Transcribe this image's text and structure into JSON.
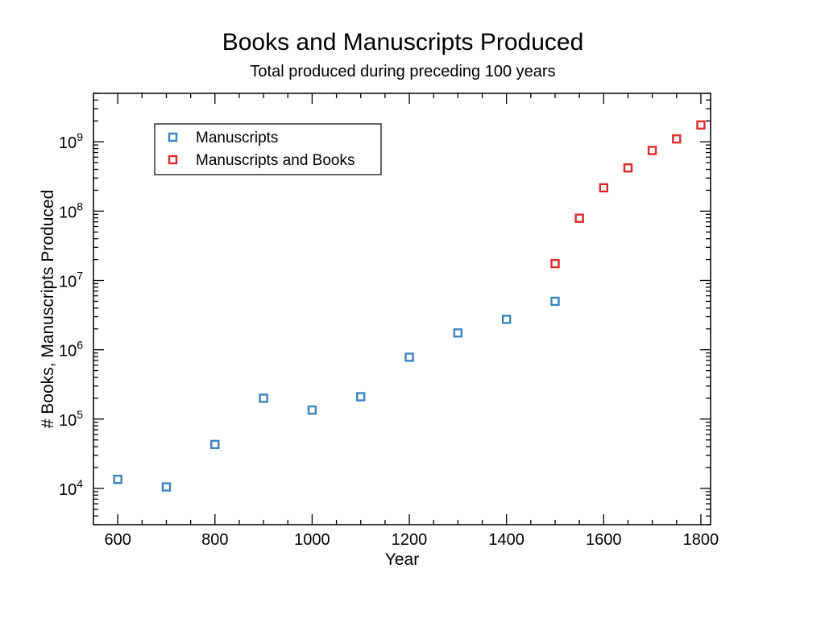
{
  "chart_data": {
    "type": "scatter",
    "title": "Books and Manuscripts Produced",
    "subtitle": "Total produced during preceding 100 years",
    "xlabel": "Year",
    "ylabel": "# Books, Manuscripts Produced",
    "xlim": [
      550,
      1820
    ],
    "ylim": [
      3000,
      5000000000
    ],
    "yscale": "log",
    "x_ticks": [
      600,
      800,
      1000,
      1200,
      1400,
      1600,
      1800
    ],
    "x_tick_labels": [
      "600",
      "800",
      "1000",
      "1200",
      "1400",
      "1600",
      "1800"
    ],
    "y_ticks": [
      {
        "value": 10000,
        "base": "10",
        "exp": "4"
      },
      {
        "value": 100000,
        "base": "10",
        "exp": "5"
      },
      {
        "value": 1000000,
        "base": "10",
        "exp": "6"
      },
      {
        "value": 10000000,
        "base": "10",
        "exp": "7"
      },
      {
        "value": 100000000,
        "base": "10",
        "exp": "8"
      },
      {
        "value": 1000000000,
        "base": "10",
        "exp": "9"
      }
    ],
    "legend_position": "top-left",
    "series": [
      {
        "name": "Manuscripts",
        "color": "#3a84c4",
        "marker": "square",
        "x": [
          600,
          700,
          800,
          900,
          1000,
          1100,
          1200,
          1300,
          1400,
          1500
        ],
        "y": [
          13500,
          10500,
          43000,
          200000,
          135000,
          210000,
          780000,
          1750000,
          2750000,
          5000000
        ]
      },
      {
        "name": "Manuscripts and Books",
        "color": "#e02b2b",
        "marker": "square",
        "x": [
          1500,
          1550,
          1600,
          1650,
          1700,
          1750,
          1800
        ],
        "y": [
          17500000,
          79000000,
          217000000,
          420000000,
          750000000,
          1100000000,
          1750000000
        ]
      }
    ]
  }
}
